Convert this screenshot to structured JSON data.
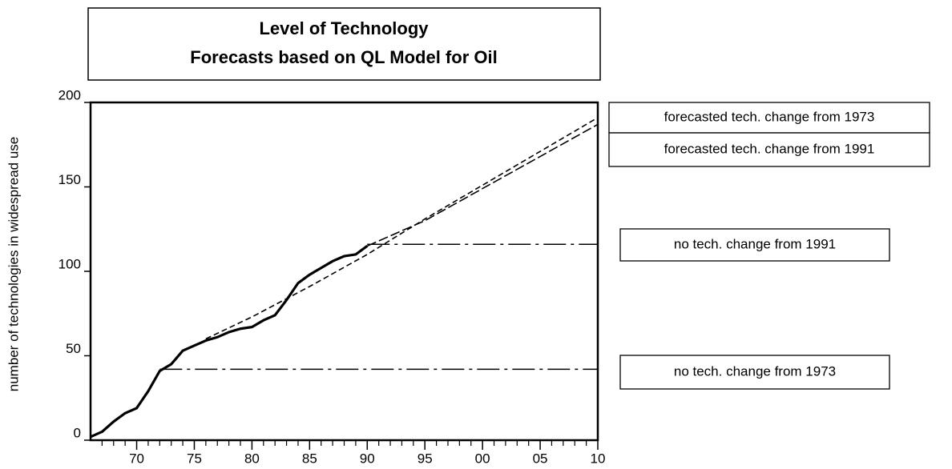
{
  "chart_data": {
    "type": "line",
    "title": [
      "Level of Technology",
      "Forecasts based on QL Model for Oil"
    ],
    "y_label": "number of technologies in widespread use",
    "xlim": [
      1966,
      2010
    ],
    "ylim": [
      0,
      200
    ],
    "yticks": [
      0,
      50,
      100,
      150,
      200
    ],
    "xticks": [
      {
        "value": 1970,
        "label": "70"
      },
      {
        "value": 1975,
        "label": "75"
      },
      {
        "value": 1980,
        "label": "80"
      },
      {
        "value": 1985,
        "label": "85"
      },
      {
        "value": 1990,
        "label": "90"
      },
      {
        "value": 1995,
        "label": "95"
      },
      {
        "value": 2000,
        "label": "00"
      },
      {
        "value": 2005,
        "label": "05"
      },
      {
        "value": 2010,
        "label": "10"
      }
    ],
    "xminorticks": [
      1967,
      1968,
      1969,
      1971,
      1972,
      1973,
      1974,
      1976,
      1977,
      1978,
      1979,
      1981,
      1982,
      1983,
      1984,
      1986,
      1987,
      1988,
      1989,
      1991,
      1992,
      1993,
      1994,
      1996,
      1997,
      1998,
      1999,
      2001,
      2002,
      2003,
      2004,
      2006,
      2007,
      2008,
      2009
    ],
    "series": [
      {
        "color": "#000000",
        "dash": "solid",
        "x": [
          1966,
          1967,
          1968,
          1969,
          1970,
          1971,
          1972,
          1973,
          1974,
          1975,
          1976,
          1977,
          1978,
          1979,
          1980,
          1981,
          1982,
          1983,
          1984,
          1985,
          1986,
          1987,
          1988,
          1989,
          1990
        ],
        "values": [
          2,
          5,
          11,
          16,
          19,
          29,
          41,
          45,
          53,
          56,
          59,
          61,
          64,
          66,
          67,
          71,
          74,
          83,
          93,
          98,
          102,
          106,
          109,
          110,
          115
        ]
      },
      {
        "name": "forecasted tech. change from 1973",
        "color": "#000000",
        "dash": "short",
        "x": [
          1976,
          1980,
          1985,
          1990,
          1995,
          2000,
          2005,
          2010
        ],
        "values": [
          60,
          73,
          91,
          110,
          131,
          151,
          171,
          191
        ]
      },
      {
        "name": "forecasted tech. change from 1991",
        "color": "#000000",
        "dash": "medium",
        "x": [
          1990,
          1995,
          2000,
          2005,
          2010
        ],
        "values": [
          115,
          130,
          149,
          168,
          187
        ]
      },
      {
        "name": "no tech. change from 1991",
        "color": "#000000",
        "dash": "long-dot",
        "x": [
          1990,
          2010
        ],
        "values": [
          116,
          116
        ]
      },
      {
        "name": "no tech. change from 1973",
        "color": "#000000",
        "dash": "long-dot",
        "x": [
          1972,
          2010
        ],
        "values": [
          42,
          42
        ]
      }
    ]
  }
}
